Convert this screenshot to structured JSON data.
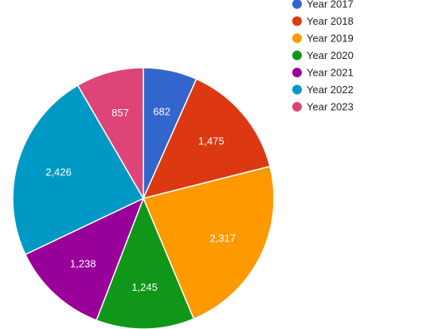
{
  "chart_data": {
    "type": "pie",
    "categories": [
      "Year 2017",
      "Year 2018",
      "Year 2019",
      "Year 2020",
      "Year 2021",
      "Year 2022",
      "Year 2023"
    ],
    "values": [
      682,
      1475,
      2317,
      1245,
      1238,
      2426,
      857
    ],
    "value_labels": [
      "682",
      "1,475",
      "2,317",
      "1,245",
      "1,238",
      "2,426",
      "857"
    ],
    "colors": [
      "#3366cc",
      "#dc3912",
      "#ff9900",
      "#109618",
      "#990099",
      "#0099c6",
      "#dd4477"
    ],
    "legend_position": "top-right",
    "start_angle": "12 o'clock",
    "direction": "clockwise"
  }
}
